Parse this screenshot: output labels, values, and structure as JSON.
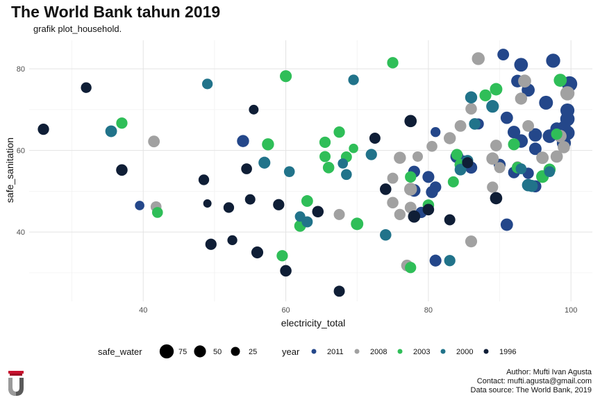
{
  "title": "The World Bank tahun 2019",
  "subtitle": "grafik plot_household.",
  "caption": [
    "Author: Mufti Ivan Agusta",
    "Contact: mufti.agusta@gmail.com",
    "Data source: The World Bank, 2019"
  ],
  "chart_data": {
    "type": "scatter",
    "title": "The World Bank tahun 2019",
    "subtitle": "grafik plot_household.",
    "xlabel": "electricity_total",
    "ylabel": "safe_sanitation",
    "xlim": [
      24,
      103
    ],
    "ylim": [
      23,
      87
    ],
    "xticks": [
      40,
      60,
      80,
      100
    ],
    "yticks": [
      40,
      60,
      80
    ],
    "grid": true,
    "legend_position": "bottom",
    "size_legend": {
      "title": "safe_water",
      "entries": [
        {
          "label": "75",
          "value": 75
        },
        {
          "label": "50",
          "value": 50
        },
        {
          "label": "25",
          "value": 25
        }
      ]
    },
    "color_legend": {
      "title": "year",
      "entries": [
        {
          "label": "2011",
          "color": "#24478a"
        },
        {
          "label": "2008",
          "color": "#a1a1a1"
        },
        {
          "label": "2003",
          "color": "#2fbe58"
        },
        {
          "label": "2000",
          "color": "#21738a"
        },
        {
          "label": "1996",
          "color": "#0f1e36"
        }
      ]
    },
    "series": [
      {
        "name": "2011",
        "color": "#24478a",
        "points": [
          [
            39.5,
            46.5,
            28
          ],
          [
            54,
            62.3,
            52
          ],
          [
            81,
            64.5,
            32
          ],
          [
            87,
            66.5,
            42
          ],
          [
            90.5,
            83.5,
            48
          ],
          [
            93,
            81,
            70
          ],
          [
            97.5,
            82,
            75
          ],
          [
            91,
            68,
            55
          ],
          [
            94,
            74.8,
            62
          ],
          [
            96.5,
            71.7,
            72
          ],
          [
            92,
            64.5,
            58
          ],
          [
            93,
            62.3,
            68
          ],
          [
            95,
            63.8,
            66
          ],
          [
            97,
            63.5,
            70
          ],
          [
            98,
            65.3,
            60
          ],
          [
            99,
            61.8,
            74
          ],
          [
            99.5,
            64.3,
            80
          ],
          [
            99.5,
            67.7,
            78
          ],
          [
            99.5,
            69.8,
            74
          ],
          [
            99.8,
            76.3,
            92
          ],
          [
            90,
            56.5,
            50
          ],
          [
            92,
            54.6,
            48
          ],
          [
            95,
            60.4,
            56
          ],
          [
            78,
            54.8,
            50
          ],
          [
            78,
            50.2,
            58
          ],
          [
            80,
            53.5,
            50
          ],
          [
            81,
            51,
            46
          ],
          [
            80.5,
            49.8,
            52
          ],
          [
            79,
            44.8,
            44
          ],
          [
            81,
            33,
            50
          ],
          [
            86,
            55.8,
            52
          ],
          [
            85,
            57.3,
            50
          ],
          [
            91,
            41.8,
            55
          ],
          [
            95,
            51.2,
            52
          ],
          [
            94,
            54.4,
            44
          ],
          [
            99,
            65.5,
            72
          ],
          [
            92.5,
            77,
            58
          ],
          [
            84,
            58.5,
            62
          ]
        ]
      },
      {
        "name": "2008",
        "color": "#a1a1a1",
        "points": [
          [
            41.5,
            62.2,
            48
          ],
          [
            41.8,
            46.2,
            40
          ],
          [
            67.5,
            44.3,
            42
          ],
          [
            75,
            53.2,
            42
          ],
          [
            75,
            47.2,
            46
          ],
          [
            76,
            58.2,
            52
          ],
          [
            77.5,
            50.5,
            60
          ],
          [
            77.5,
            46,
            48
          ],
          [
            78.5,
            58.5,
            36
          ],
          [
            80.5,
            61,
            40
          ],
          [
            77,
            31.8,
            48
          ],
          [
            76,
            44.3,
            44
          ],
          [
            83,
            63,
            52
          ],
          [
            84.5,
            66,
            48
          ],
          [
            86,
            70.2,
            46
          ],
          [
            87,
            82.5,
            60
          ],
          [
            86,
            37.7,
            50
          ],
          [
            89,
            51,
            44
          ],
          [
            90,
            55.8,
            42
          ],
          [
            92.5,
            56,
            40
          ],
          [
            93.5,
            77,
            62
          ],
          [
            93,
            72.7,
            52
          ],
          [
            94,
            66,
            48
          ],
          [
            96,
            58.2,
            56
          ],
          [
            98,
            58.5,
            54
          ],
          [
            99,
            60.8,
            54
          ],
          [
            99.5,
            74,
            76
          ],
          [
            98.5,
            63.5,
            58
          ],
          [
            89,
            58,
            56
          ],
          [
            89.5,
            61.2,
            48
          ]
        ]
      },
      {
        "name": "2003",
        "color": "#2fbe58",
        "points": [
          [
            37,
            66.7,
            44
          ],
          [
            42,
            44.8,
            40
          ],
          [
            57.5,
            61.5,
            52
          ],
          [
            60,
            78.2,
            50
          ],
          [
            59.5,
            34.2,
            44
          ],
          [
            62,
            41.5,
            48
          ],
          [
            63,
            47.6,
            48
          ],
          [
            65.5,
            62,
            44
          ],
          [
            65.5,
            58.5,
            42
          ],
          [
            66,
            55.8,
            46
          ],
          [
            67.5,
            64.5,
            44
          ],
          [
            68.5,
            58.4,
            42
          ],
          [
            69.5,
            60.5,
            28
          ],
          [
            70,
            42,
            56
          ],
          [
            75,
            81.5,
            44
          ],
          [
            77.5,
            31.3,
            44
          ],
          [
            77.5,
            53.5,
            44
          ],
          [
            80,
            46.6,
            46
          ],
          [
            83.5,
            52.3,
            42
          ],
          [
            84,
            59,
            44
          ],
          [
            84.5,
            56.5,
            50
          ],
          [
            88,
            73.5,
            50
          ],
          [
            89.5,
            75,
            56
          ],
          [
            92,
            61.5,
            50
          ],
          [
            92.5,
            55.8,
            46
          ],
          [
            96,
            53.6,
            58
          ],
          [
            97,
            55.3,
            52
          ],
          [
            98,
            64,
            44
          ],
          [
            98.5,
            77.2,
            62
          ]
        ]
      },
      {
        "name": "2000",
        "color": "#21738a",
        "points": [
          [
            35.5,
            64.7,
            48
          ],
          [
            49,
            76.3,
            38
          ],
          [
            57,
            57,
            50
          ],
          [
            60.5,
            54.8,
            40
          ],
          [
            62,
            43.8,
            36
          ],
          [
            63,
            42.5,
            42
          ],
          [
            68,
            56.8,
            34
          ],
          [
            68.5,
            54.1,
            40
          ],
          [
            69.5,
            77.3,
            38
          ],
          [
            72,
            59,
            44
          ],
          [
            74,
            39.3,
            46
          ],
          [
            83,
            33,
            44
          ],
          [
            84.5,
            55.3,
            48
          ],
          [
            85.5,
            57.5,
            44
          ],
          [
            86,
            73,
            52
          ],
          [
            86.5,
            66.5,
            46
          ],
          [
            89,
            70.8,
            58
          ],
          [
            93,
            55.5,
            40
          ],
          [
            94,
            51.5,
            56
          ],
          [
            94.5,
            51.3,
            52
          ],
          [
            97,
            54.8,
            40
          ]
        ]
      },
      {
        "name": "1996",
        "color": "#0f1e36",
        "points": [
          [
            26,
            65.2,
            44
          ],
          [
            32,
            75.4,
            38
          ],
          [
            37,
            55.2,
            46
          ],
          [
            48.5,
            52.8,
            38
          ],
          [
            49,
            47,
            20
          ],
          [
            49.5,
            37,
            44
          ],
          [
            52,
            46,
            38
          ],
          [
            52.5,
            38,
            32
          ],
          [
            54.5,
            55.5,
            40
          ],
          [
            55,
            48,
            36
          ],
          [
            55.5,
            70,
            30
          ],
          [
            56,
            35,
            50
          ],
          [
            59,
            46.7,
            44
          ],
          [
            60,
            30.5,
            46
          ],
          [
            64.5,
            45,
            46
          ],
          [
            67.5,
            25.5,
            42
          ],
          [
            72.5,
            63,
            42
          ],
          [
            74,
            50.5,
            46
          ],
          [
            77.5,
            67.2,
            54
          ],
          [
            78,
            43.8,
            54
          ],
          [
            80,
            45.5,
            46
          ],
          [
            83,
            43,
            42
          ],
          [
            85.5,
            57,
            42
          ],
          [
            89.5,
            48.3,
            54
          ]
        ]
      }
    ]
  }
}
